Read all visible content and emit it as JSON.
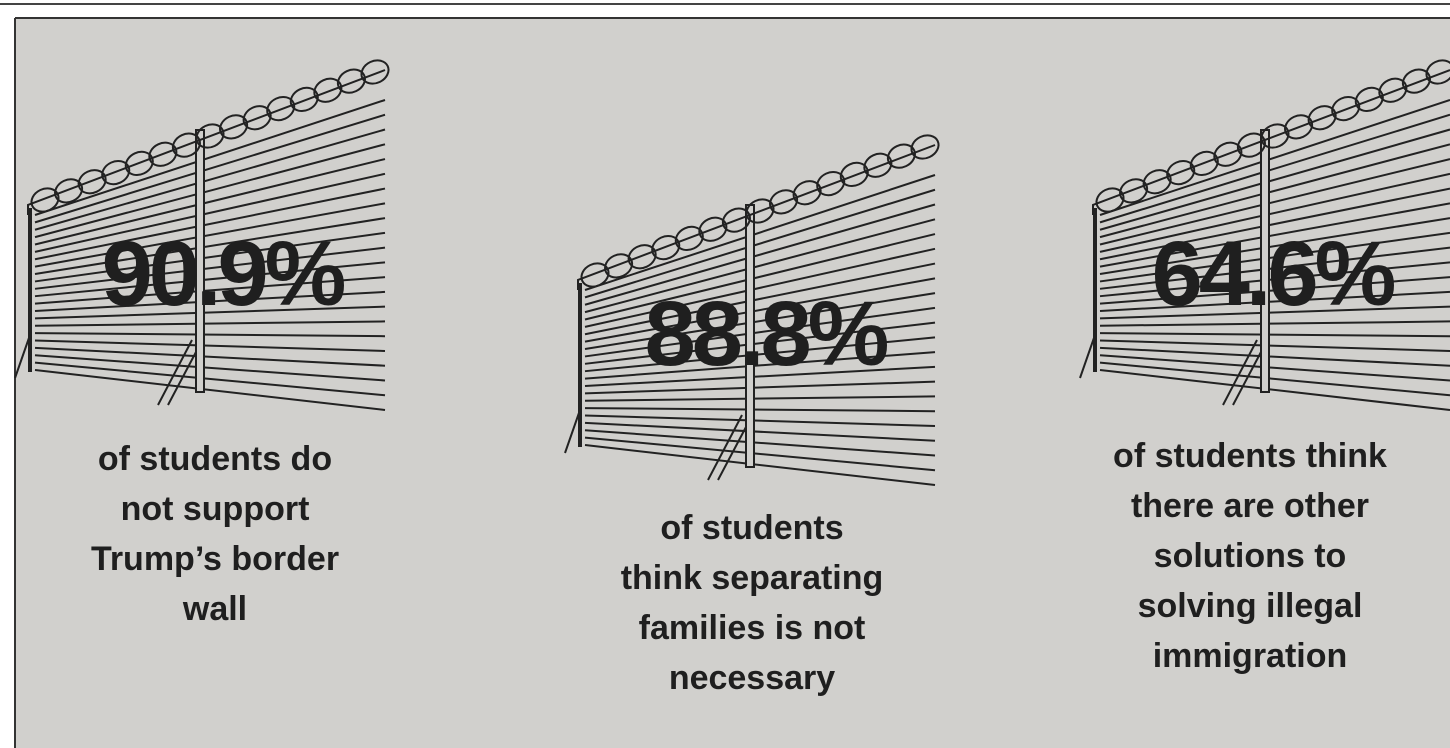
{
  "panels": [
    {
      "stat": "90.9%",
      "caption": [
        "of students do",
        "not support",
        "Trump’s border",
        "wall"
      ]
    },
    {
      "stat": "88.8%",
      "caption": [
        "of students",
        "think separating",
        "families is not",
        "necessary"
      ]
    },
    {
      "stat": "64.6%",
      "caption": [
        "of students think",
        "there are other",
        "solutions to",
        "solving illegal",
        "immigration"
      ]
    }
  ]
}
